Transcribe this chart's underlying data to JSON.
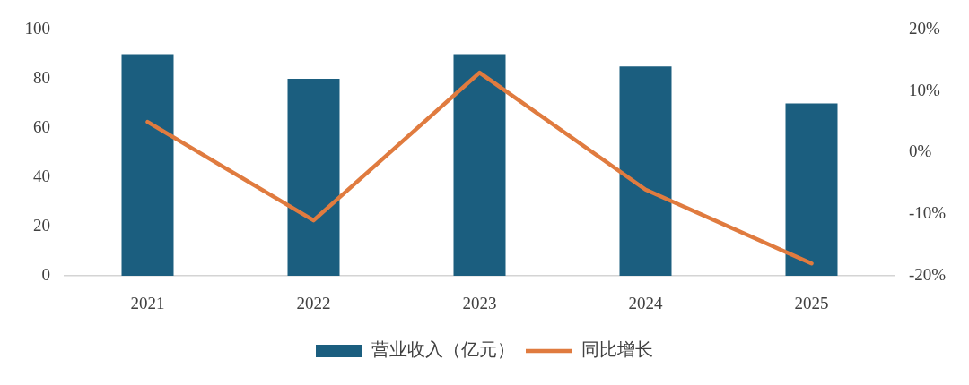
{
  "chart_data": {
    "type": "bar",
    "categories": [
      "2021",
      "2022",
      "2023",
      "2024",
      "2025"
    ],
    "series": [
      {
        "name": "营业收入（亿元）",
        "color": "#1b5e7f",
        "values": [
          90,
          80,
          90,
          85,
          70
        ]
      },
      {
        "name": "同比增长",
        "type": "line",
        "axis": "y2",
        "color": "#e07b3f",
        "values": [
          5,
          -11,
          13,
          -6,
          -18
        ]
      }
    ],
    "ylim": [
      0,
      100
    ],
    "yticks": [
      0,
      20,
      40,
      60,
      80,
      100
    ],
    "y2lim": [
      -20,
      20
    ],
    "y2ticks": [
      {
        "value": -20,
        "label": "-20%"
      },
      {
        "value": -10,
        "label": "-10%"
      },
      {
        "value": 0,
        "label": "0%"
      },
      {
        "value": 10,
        "label": "10%"
      },
      {
        "value": 20,
        "label": "20%"
      }
    ],
    "grid": false,
    "legend": "bottom",
    "line_style": "solid"
  }
}
